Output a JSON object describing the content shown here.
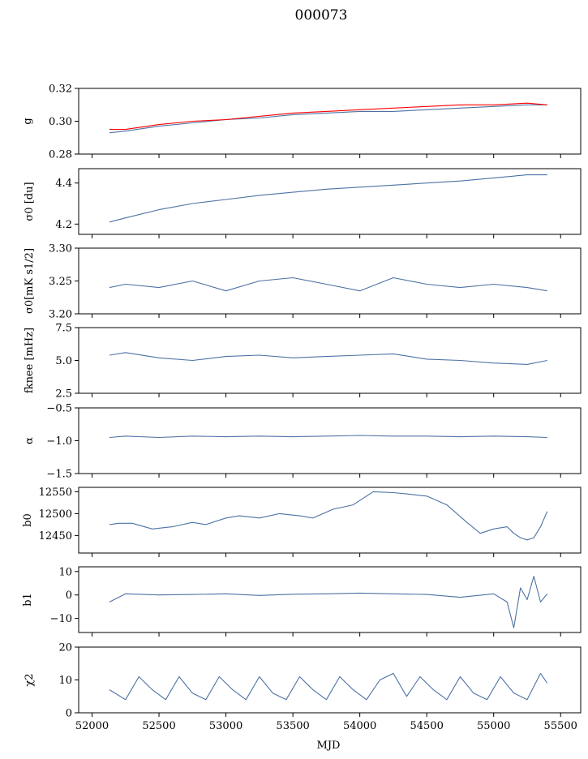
{
  "figure": {
    "title": "000073",
    "xlabel": "MJD"
  },
  "colors": {
    "data": "#4c72a4",
    "fit": "#ff0000"
  },
  "chart_data": [
    {
      "type": "line",
      "panel": "g",
      "ylabel": "g",
      "ylim": [
        0.28,
        0.32
      ],
      "yticks": [
        0.28,
        0.3,
        0.32
      ],
      "ytick_labels": [
        "0.28",
        "0.30",
        "0.32"
      ],
      "xlim": [
        51900,
        55650
      ],
      "x": [
        52130,
        52250,
        52500,
        52750,
        53000,
        53250,
        53500,
        53750,
        54000,
        54250,
        54500,
        54750,
        55000,
        55250,
        55400
      ],
      "series": [
        {
          "values": [
            0.293,
            0.294,
            0.297,
            0.299,
            0.301,
            0.302,
            0.304,
            0.305,
            0.306,
            0.306,
            0.307,
            0.308,
            0.309,
            0.31,
            0.31
          ]
        },
        {
          "values": [
            0.295,
            0.295,
            0.298,
            0.3,
            0.301,
            0.303,
            0.305,
            0.306,
            0.307,
            0.308,
            0.309,
            0.31,
            0.31,
            0.311,
            0.31
          ]
        }
      ]
    },
    {
      "type": "line",
      "panel": "sigma0_du",
      "ylabel": "σ0 [du]",
      "ylim": [
        4.15,
        4.47
      ],
      "yticks": [
        4.2,
        4.4
      ],
      "ytick_labels": [
        "4.2",
        "4.4"
      ],
      "xlim": [
        51900,
        55650
      ],
      "x": [
        52130,
        52250,
        52500,
        52750,
        53000,
        53250,
        53500,
        53750,
        54000,
        54250,
        54500,
        54750,
        55000,
        55250,
        55400
      ],
      "series": [
        {
          "values": [
            4.21,
            4.23,
            4.27,
            4.3,
            4.32,
            4.34,
            4.355,
            4.37,
            4.38,
            4.39,
            4.4,
            4.41,
            4.425,
            4.44,
            4.44
          ]
        }
      ]
    },
    {
      "type": "line",
      "panel": "sigma0_mk",
      "ylabel": "σ0[mK s1/2]",
      "ylim": [
        3.2,
        3.3
      ],
      "yticks": [
        3.2,
        3.25,
        3.3
      ],
      "ytick_labels": [
        "3.20",
        "3.25",
        "3.30"
      ],
      "xlim": [
        51900,
        55650
      ],
      "x": [
        52130,
        52250,
        52500,
        52750,
        53000,
        53250,
        53500,
        53750,
        54000,
        54250,
        54500,
        54750,
        55000,
        55250,
        55400
      ],
      "series": [
        {
          "values": [
            3.24,
            3.245,
            3.24,
            3.25,
            3.235,
            3.25,
            3.255,
            3.245,
            3.235,
            3.255,
            3.245,
            3.24,
            3.245,
            3.24,
            3.235
          ]
        }
      ]
    },
    {
      "type": "line",
      "panel": "fknee",
      "ylabel": "fknee [mHz]",
      "ylim": [
        2.5,
        7.5
      ],
      "yticks": [
        2.5,
        5.0,
        7.5
      ],
      "ytick_labels": [
        "2.5",
        "5.0",
        "7.5"
      ],
      "xlim": [
        51900,
        55650
      ],
      "x": [
        52130,
        52250,
        52500,
        52750,
        53000,
        53250,
        53500,
        53750,
        54000,
        54250,
        54500,
        54750,
        55000,
        55250,
        55400
      ],
      "series": [
        {
          "values": [
            5.4,
            5.6,
            5.2,
            5.0,
            5.3,
            5.4,
            5.2,
            5.3,
            5.4,
            5.5,
            5.1,
            5.0,
            4.8,
            4.7,
            5.0
          ]
        }
      ]
    },
    {
      "type": "line",
      "panel": "alpha",
      "ylabel": "α",
      "ylim": [
        -1.5,
        -0.5
      ],
      "yticks": [
        -1.5,
        -1.0,
        -0.5
      ],
      "ytick_labels": [
        "−1.5",
        "−1.0",
        "−0.5"
      ],
      "xlim": [
        51900,
        55650
      ],
      "x": [
        52130,
        52250,
        52500,
        52750,
        53000,
        53250,
        53500,
        53750,
        54000,
        54250,
        54500,
        54750,
        55000,
        55250,
        55400
      ],
      "series": [
        {
          "values": [
            -0.95,
            -0.93,
            -0.95,
            -0.93,
            -0.94,
            -0.93,
            -0.94,
            -0.93,
            -0.92,
            -0.93,
            -0.93,
            -0.94,
            -0.93,
            -0.94,
            -0.95
          ]
        }
      ]
    },
    {
      "type": "line",
      "panel": "b0",
      "ylabel": "b0",
      "ylim": [
        12410,
        12560
      ],
      "yticks": [
        12450,
        12500,
        12550
      ],
      "ytick_labels": [
        "12450",
        "12500",
        "12550"
      ],
      "xlim": [
        51900,
        55650
      ],
      "x": [
        52130,
        52200,
        52300,
        52450,
        52600,
        52750,
        52850,
        53000,
        53100,
        53250,
        53400,
        53550,
        53650,
        53800,
        53950,
        54100,
        54250,
        54350,
        54500,
        54650,
        54800,
        54900,
        55000,
        55100,
        55150,
        55200,
        55250,
        55300,
        55350,
        55400
      ],
      "series": [
        {
          "values": [
            12475,
            12478,
            12478,
            12465,
            12470,
            12480,
            12475,
            12490,
            12495,
            12490,
            12500,
            12495,
            12490,
            12510,
            12520,
            12550,
            12548,
            12545,
            12540,
            12520,
            12480,
            12455,
            12465,
            12470,
            12455,
            12445,
            12440,
            12445,
            12470,
            12505
          ]
        }
      ]
    },
    {
      "type": "line",
      "panel": "b1",
      "ylabel": "b1",
      "ylim": [
        -16,
        12
      ],
      "yticks": [
        -10,
        0,
        10
      ],
      "ytick_labels": [
        "−10",
        "0",
        "10"
      ],
      "xlim": [
        51900,
        55650
      ],
      "x": [
        52130,
        52250,
        52500,
        52750,
        53000,
        53250,
        53500,
        53750,
        54000,
        54250,
        54500,
        54750,
        55000,
        55100,
        55150,
        55200,
        55250,
        55300,
        55350,
        55400
      ],
      "series": [
        {
          "values": [
            -3,
            0.5,
            0,
            0.2,
            0.5,
            -0.2,
            0.3,
            0.5,
            0.8,
            0.5,
            0.2,
            -1,
            0.5,
            -3,
            -14,
            3,
            -2,
            8,
            -3,
            0.5
          ]
        }
      ]
    },
    {
      "type": "line",
      "panel": "chi2",
      "ylabel": "χ2",
      "ylim": [
        0,
        20
      ],
      "yticks": [
        0,
        10,
        20
      ],
      "ytick_labels": [
        "0",
        "10",
        "20"
      ],
      "xlim": [
        51900,
        55650
      ],
      "xticks": [
        52000,
        52500,
        53000,
        53500,
        54000,
        54500,
        55000,
        55500
      ],
      "xtick_labels": [
        "52000",
        "52500",
        "53000",
        "53500",
        "54000",
        "54500",
        "55000",
        "55500"
      ],
      "x": [
        52130,
        52250,
        52350,
        52450,
        52550,
        52650,
        52750,
        52850,
        52950,
        53050,
        53150,
        53250,
        53350,
        53450,
        53550,
        53650,
        53750,
        53850,
        53950,
        54050,
        54150,
        54250,
        54350,
        54450,
        54550,
        54650,
        54750,
        54850,
        54950,
        55050,
        55150,
        55250,
        55350,
        55400
      ],
      "series": [
        {
          "values": [
            7,
            4,
            11,
            7,
            4,
            11,
            6,
            4,
            11,
            7,
            4,
            11,
            6,
            4,
            11,
            7,
            4,
            11,
            7,
            4,
            10,
            12,
            5,
            11,
            7,
            4,
            11,
            6,
            4,
            11,
            6,
            4,
            12,
            9
          ]
        }
      ]
    }
  ]
}
